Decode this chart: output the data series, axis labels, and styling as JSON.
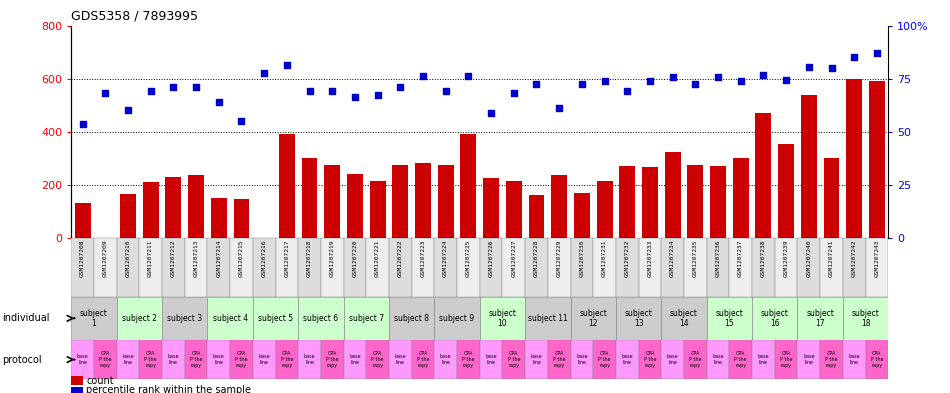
{
  "title": "GDS5358 / 7893995",
  "gsm_labels": [
    "GSM1207208",
    "GSM1207209",
    "GSM1207210",
    "GSM1207211",
    "GSM1207212",
    "GSM1207213",
    "GSM1207214",
    "GSM1207215",
    "GSM1207216",
    "GSM1207217",
    "GSM1207218",
    "GSM1207219",
    "GSM1207220",
    "GSM1207221",
    "GSM1207222",
    "GSM1207223",
    "GSM1207224",
    "GSM1207225",
    "GSM1207226",
    "GSM1207227",
    "GSM1207228",
    "GSM1207229",
    "GSM1207230",
    "GSM1207231",
    "GSM1207232",
    "GSM1207233",
    "GSM1207234",
    "GSM1207235",
    "GSM1207236",
    "GSM1207237",
    "GSM1207238",
    "GSM1207239",
    "GSM1207240",
    "GSM1207241",
    "GSM1207242",
    "GSM1207243"
  ],
  "counts": [
    130,
    0,
    165,
    210,
    230,
    235,
    150,
    145,
    0,
    390,
    300,
    275,
    240,
    215,
    275,
    280,
    275,
    390,
    225,
    215,
    160,
    235,
    170,
    215,
    270,
    265,
    325,
    275,
    270,
    300,
    470,
    355,
    540,
    300,
    600,
    590
  ],
  "percentiles": [
    430,
    545,
    480,
    555,
    570,
    570,
    510,
    440,
    620,
    650,
    555,
    555,
    530,
    540,
    570,
    610,
    555,
    610,
    470,
    545,
    580,
    490,
    580,
    590,
    555,
    590,
    605,
    580,
    605,
    590,
    615,
    595,
    645,
    640,
    680,
    695
  ],
  "ylim_left": [
    0,
    800
  ],
  "yticks_left": [
    0,
    200,
    400,
    600,
    800
  ],
  "yticks_right": [
    0,
    25,
    50,
    75,
    100
  ],
  "bar_color": "#cc0000",
  "scatter_color": "#0000cc",
  "subjects": [
    {
      "label": "subject\n1",
      "start": 0,
      "end": 2,
      "color": "#cccccc"
    },
    {
      "label": "subject 2",
      "start": 2,
      "end": 4,
      "color": "#ccffcc"
    },
    {
      "label": "subject 3",
      "start": 4,
      "end": 6,
      "color": "#cccccc"
    },
    {
      "label": "subject 4",
      "start": 6,
      "end": 8,
      "color": "#ccffcc"
    },
    {
      "label": "subject 5",
      "start": 8,
      "end": 10,
      "color": "#ccffcc"
    },
    {
      "label": "subject 6",
      "start": 10,
      "end": 12,
      "color": "#ccffcc"
    },
    {
      "label": "subject 7",
      "start": 12,
      "end": 14,
      "color": "#ccffcc"
    },
    {
      "label": "subject 8",
      "start": 14,
      "end": 16,
      "color": "#cccccc"
    },
    {
      "label": "subject 9",
      "start": 16,
      "end": 18,
      "color": "#cccccc"
    },
    {
      "label": "subject\n10",
      "start": 18,
      "end": 20,
      "color": "#ccffcc"
    },
    {
      "label": "subject 11",
      "start": 20,
      "end": 22,
      "color": "#cccccc"
    },
    {
      "label": "subject\n12",
      "start": 22,
      "end": 24,
      "color": "#cccccc"
    },
    {
      "label": "subject\n13",
      "start": 24,
      "end": 26,
      "color": "#cccccc"
    },
    {
      "label": "subject\n14",
      "start": 26,
      "end": 28,
      "color": "#cccccc"
    },
    {
      "label": "subject\n15",
      "start": 28,
      "end": 30,
      "color": "#ccffcc"
    },
    {
      "label": "subject\n16",
      "start": 30,
      "end": 32,
      "color": "#ccffcc"
    },
    {
      "label": "subject\n17",
      "start": 32,
      "end": 34,
      "color": "#ccffcc"
    },
    {
      "label": "subject\n18",
      "start": 34,
      "end": 36,
      "color": "#ccffcc"
    }
  ],
  "prot_color_baseline": "#ff99ff",
  "prot_color_therapy": "#ff66cc",
  "legend_count_color": "#cc0000",
  "legend_pct_color": "#0000cc",
  "gsm_bg_odd": "#dddddd",
  "gsm_bg_even": "#eeeeee"
}
